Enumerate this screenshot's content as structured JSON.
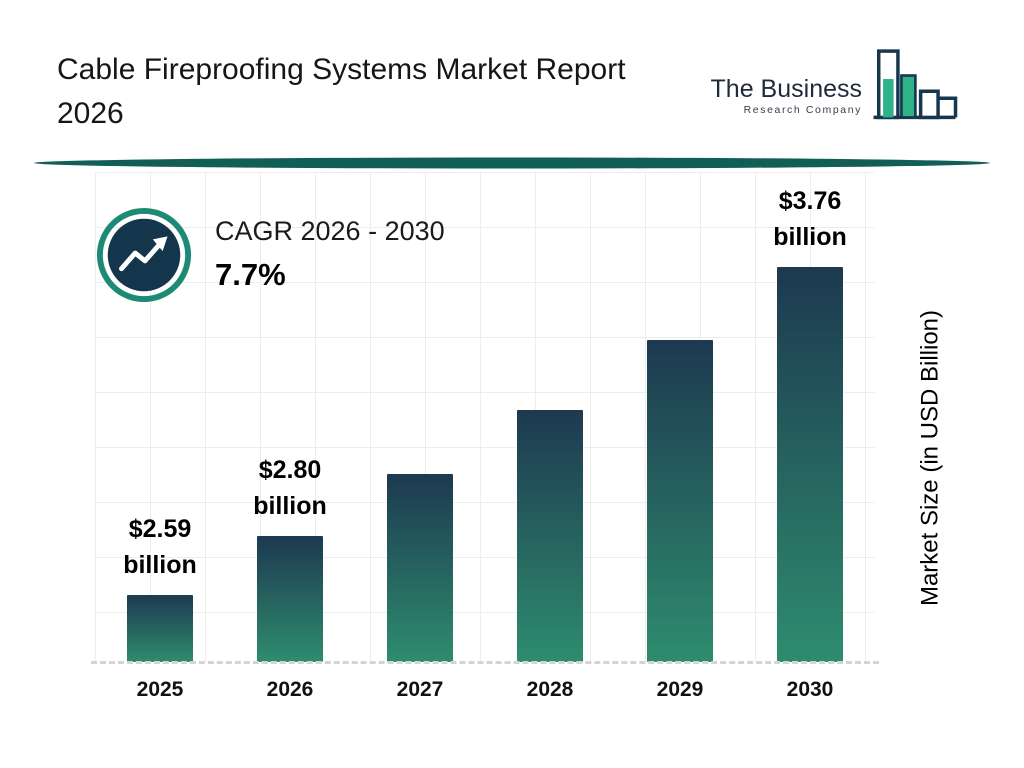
{
  "header": {
    "title": "Cable Fireproofing Systems Market Report 2026",
    "logo": {
      "line1": "The Business",
      "line2": "Research Company"
    }
  },
  "cagr": {
    "label": "CAGR 2026 - 2030",
    "value": "7.7%"
  },
  "chart_data": {
    "type": "bar",
    "title": "Cable Fireproofing Systems Market Report 2026",
    "categories": [
      "2025",
      "2026",
      "2027",
      "2028",
      "2029",
      "2030"
    ],
    "values": [
      2.59,
      2.8,
      3.02,
      3.25,
      3.5,
      3.76
    ],
    "value_labels": [
      "$2.59",
      "$2.80",
      null,
      null,
      null,
      "$3.76"
    ],
    "value_label_unit": "billion",
    "xlabel": "",
    "ylabel": "Market Size (in USD Billion)",
    "ylim": [
      2.35,
      4.1
    ],
    "grid": true,
    "legend": false,
    "cagr_pct": 7.7
  },
  "icons": {
    "cagr_icon": "trend-up-icon",
    "logo_icon": "bar-chart-icon"
  },
  "colors": {
    "bar_gradient_top": "#1d3950",
    "bar_gradient_bottom": "#2e8c6e",
    "badge_ring": "#1d8a74",
    "badge_fill": "#14364d",
    "divider": "#115e56",
    "grid": "#ececec",
    "logo_navy": "#16374e",
    "logo_green": "#2db387"
  }
}
